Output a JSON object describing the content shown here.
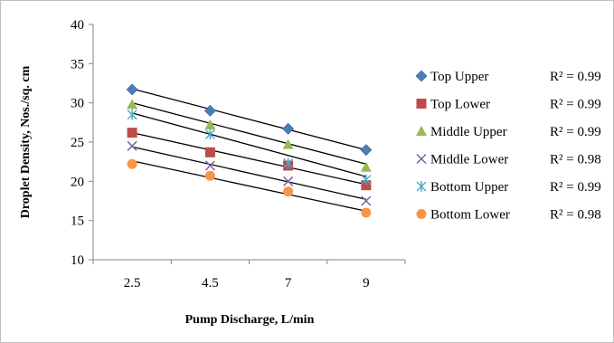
{
  "chart_data": {
    "type": "scatter",
    "title": "",
    "xlabel": "Pump Discharge, L/min",
    "ylabel": "Droplet Density, Nos./sq. cm",
    "categories": [
      "2.5",
      "4.5",
      "7",
      "9"
    ],
    "ylim": [
      10,
      40
    ],
    "yticks": [
      "10",
      "15",
      "20",
      "25",
      "30",
      "35",
      "40"
    ],
    "grid": false,
    "legend_position": "right",
    "series": [
      {
        "name": "Top Upper",
        "values": [
          31.7,
          29.0,
          26.7,
          24.0
        ],
        "marker": "diamond",
        "color": "#4a7ebb",
        "r2": "R² = 0.99",
        "trend": [
          31.8,
          29.2,
          26.6,
          24.0
        ]
      },
      {
        "name": "Top Lower",
        "values": [
          26.2,
          23.7,
          22.0,
          19.5
        ],
        "marker": "square",
        "color": "#be4b48",
        "r2": "R² = 0.99",
        "trend": [
          26.2,
          24.0,
          21.8,
          19.6
        ]
      },
      {
        "name": "Middle Upper",
        "values": [
          29.8,
          27.2,
          24.7,
          21.8
        ],
        "marker": "triangle",
        "color": "#98b954",
        "r2": "R² = 0.99",
        "trend": [
          30.0,
          27.4,
          24.8,
          22.2
        ]
      },
      {
        "name": "Middle Lower",
        "values": [
          24.5,
          22.0,
          20.0,
          17.5
        ],
        "marker": "x",
        "color": "#7d60a0",
        "r2": "R² = 0.98",
        "trend": [
          24.4,
          22.2,
          19.9,
          17.7
        ]
      },
      {
        "name": "Bottom Upper",
        "values": [
          28.5,
          26.0,
          22.3,
          20.2
        ],
        "marker": "asterisk",
        "color": "#46aac5",
        "r2": "R² = 0.99",
        "trend": [
          28.7,
          26.1,
          23.2,
          20.6
        ]
      },
      {
        "name": "Bottom Lower",
        "values": [
          22.2,
          20.7,
          18.7,
          16.0
        ],
        "marker": "circle",
        "color": "#f79646",
        "r2": "R² = 0.98",
        "trend": [
          22.6,
          20.5,
          18.3,
          16.2
        ]
      }
    ]
  }
}
